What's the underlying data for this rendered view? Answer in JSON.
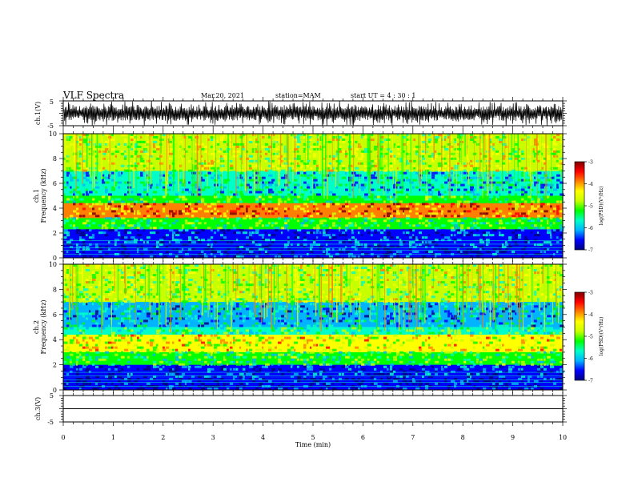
{
  "header": {
    "title": "VLF Spectra",
    "date": "Mar.20, 2021",
    "station": "station=MAM",
    "start": "start  UT =   4 : 30 : 1"
  },
  "chart_data": [
    {
      "type": "line",
      "panel": "ch1-waveform",
      "ylabel": "ch.1(V)",
      "ylim": [
        -5,
        5
      ],
      "yticks": [
        "5",
        "-5"
      ],
      "xlim": [
        0,
        10
      ],
      "description_series": "dense impulsive waveform",
      "series": [
        {
          "values_range": [
            -5,
            5
          ]
        }
      ]
    },
    {
      "type": "heatmap",
      "panel": "ch1-spectrogram",
      "ylabel": "ch.1\nFrequency (kHz)",
      "ylabel_lines": [
        "ch.1",
        "Frequency (kHz)"
      ],
      "ylim": [
        0,
        10
      ],
      "yticks": [
        "0",
        "2",
        "4",
        "6",
        "8",
        "10"
      ],
      "xlim": [
        0,
        10
      ],
      "colorbar": {
        "label": "log(PSD)(V²/Hz)",
        "range": [
          -7,
          -3
        ],
        "ticks": [
          "-3",
          "-4",
          "-5",
          "-6",
          "-7"
        ]
      },
      "bands_khz": [
        {
          "from": 0.0,
          "to": 1.0,
          "level": -6.5
        },
        {
          "from": 1.0,
          "to": 2.3,
          "level": -6.2
        },
        {
          "from": 2.3,
          "to": 3.2,
          "level": -5.3
        },
        {
          "from": 3.2,
          "to": 4.4,
          "level": -3.9
        },
        {
          "from": 4.4,
          "to": 5.0,
          "level": -5.2
        },
        {
          "from": 5.0,
          "to": 7.0,
          "level": -5.8
        },
        {
          "from": 7.0,
          "to": 10.0,
          "level": -4.8
        }
      ]
    },
    {
      "type": "heatmap",
      "panel": "ch2-spectrogram",
      "ylabel_lines": [
        "ch.2",
        "Frequency (kHz)"
      ],
      "ylim": [
        0,
        10
      ],
      "yticks": [
        "0",
        "2",
        "4",
        "6",
        "8",
        "10"
      ],
      "xlim": [
        0,
        10
      ],
      "colorbar": {
        "label": "log(PSD)(V²/Hz)",
        "range": [
          -7,
          -3
        ],
        "ticks": [
          "-3",
          "-4",
          "-5",
          "-6",
          "-7"
        ]
      },
      "bands_khz": [
        {
          "from": 0.0,
          "to": 1.0,
          "level": -6.6
        },
        {
          "from": 1.0,
          "to": 2.0,
          "level": -6.3
        },
        {
          "from": 2.0,
          "to": 3.0,
          "level": -5.3
        },
        {
          "from": 3.0,
          "to": 4.4,
          "level": -4.5
        },
        {
          "from": 4.4,
          "to": 5.0,
          "level": -5.4
        },
        {
          "from": 5.0,
          "to": 7.0,
          "level": -5.9
        },
        {
          "from": 7.0,
          "to": 10.0,
          "level": -4.9
        }
      ]
    },
    {
      "type": "line",
      "panel": "ch3-waveform",
      "ylabel": "ch.3(V)",
      "ylim": [
        -5,
        5
      ],
      "yticks": [
        "5",
        "-5"
      ],
      "xlim": [
        0,
        10
      ],
      "series": [
        {
          "values": [
            0,
            0
          ]
        }
      ]
    }
  ],
  "xaxis": {
    "label": "Time (min)",
    "ticks": [
      "0",
      "1",
      "2",
      "3",
      "4",
      "5",
      "6",
      "7",
      "8",
      "9",
      "10"
    ]
  },
  "colors": {
    "colormap": [
      "#000080",
      "#0000ff",
      "#00b4ff",
      "#00ffc8",
      "#00ff00",
      "#c8ff00",
      "#ffff00",
      "#ff8000",
      "#ff0000",
      "#800000"
    ]
  }
}
